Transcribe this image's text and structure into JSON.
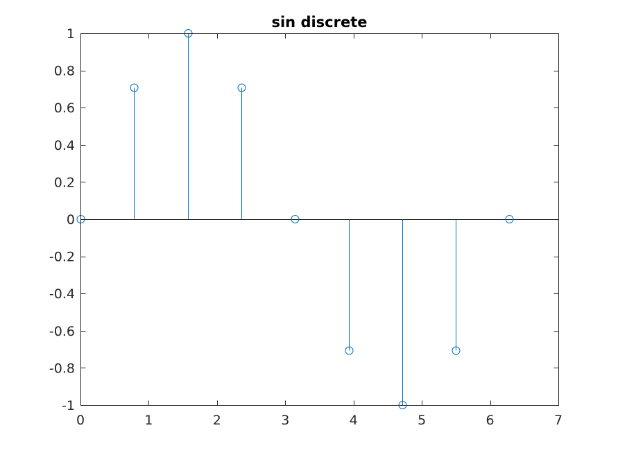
{
  "chart_data": {
    "type": "stem",
    "title": "sin discrete",
    "xlabel": "",
    "ylabel": "",
    "xlim": [
      0,
      7
    ],
    "ylim": [
      -1,
      1
    ],
    "x_ticks": [
      0,
      1,
      2,
      3,
      4,
      5,
      6,
      7
    ],
    "y_ticks": [
      -1,
      -0.8,
      -0.6,
      -0.4,
      -0.2,
      0,
      0.2,
      0.4,
      0.6,
      0.8,
      1
    ],
    "x_tick_labels": [
      "0",
      "1",
      "2",
      "3",
      "4",
      "5",
      "6",
      "7"
    ],
    "y_tick_labels": [
      "-1",
      "-0.8",
      "-0.6",
      "-0.4",
      "-0.2",
      "0",
      "0.2",
      "0.4",
      "0.6",
      "0.8",
      "1"
    ],
    "grid": false,
    "baseline": 0,
    "series": [
      {
        "x": [
          0,
          0.7854,
          1.5708,
          2.3562,
          3.1416,
          3.927,
          4.7124,
          5.4978,
          6.2832
        ],
        "y": [
          0,
          0.7071,
          1,
          0.7071,
          0,
          -0.7071,
          -1,
          -0.7071,
          0
        ],
        "color": "#0072BD",
        "marker": "circle"
      }
    ]
  }
}
